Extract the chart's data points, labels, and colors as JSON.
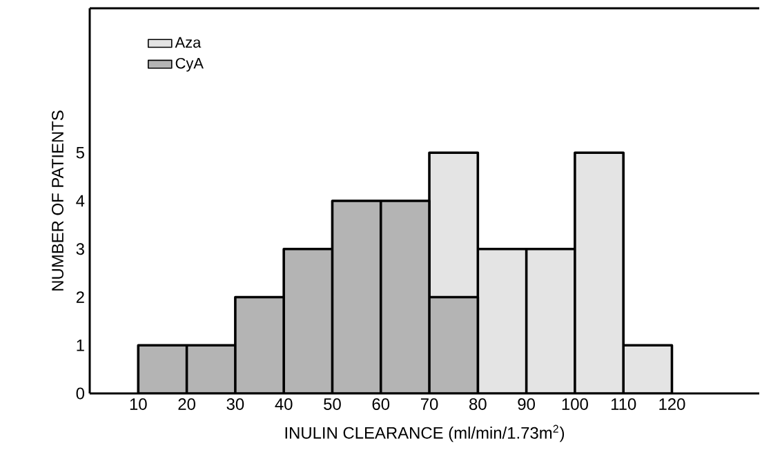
{
  "chart_data": {
    "type": "histogram",
    "xlabel": "INULIN CLEARANCE (ml/min/1.73m$^{2}$)",
    "ylabel": "NUMBER OF PATIENTS",
    "xlim": [
      0,
      138
    ],
    "ylim": [
      0,
      8
    ],
    "xticks": [
      10,
      20,
      30,
      40,
      50,
      60,
      70,
      80,
      90,
      100,
      110,
      120
    ],
    "yticks": [
      0,
      1,
      2,
      3,
      4,
      5
    ],
    "legend": "top left",
    "grid": false,
    "bins": [
      10,
      20,
      30,
      40,
      50,
      60,
      70,
      80,
      90,
      100,
      110,
      120
    ],
    "series": [
      {
        "name": "Aza",
        "color": "#e4e4e4",
        "values": [
          null,
          null,
          null,
          null,
          null,
          null,
          5,
          3,
          3,
          5,
          1
        ]
      },
      {
        "name": "CyA",
        "color": "#b4b4b4",
        "values": [
          1,
          1,
          2,
          3,
          4,
          4,
          2,
          null,
          null,
          null,
          null
        ]
      }
    ]
  }
}
